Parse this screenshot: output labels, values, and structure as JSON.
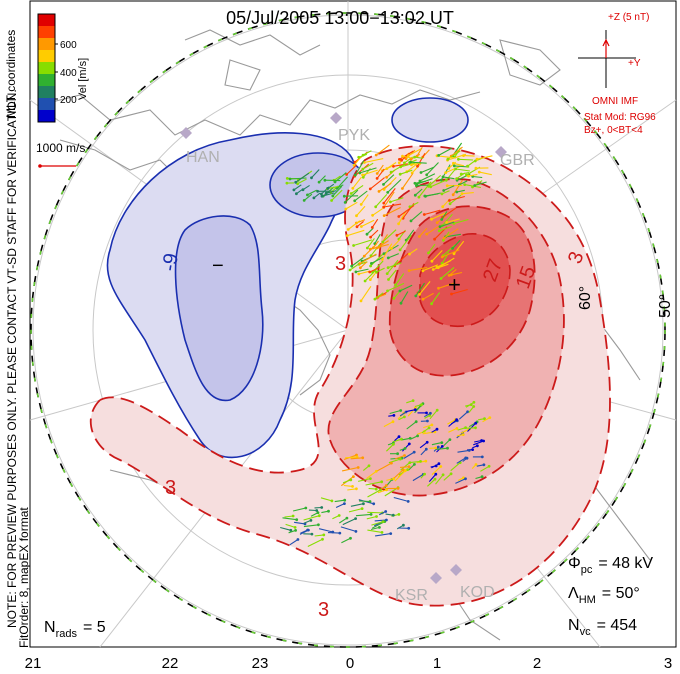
{
  "title": "05/Jul/2005 13:00−13:02 UT",
  "side_note": "NOTE: FOR PREVIEW PURPOSES ONLY. PLEASE CONTACT VT-SD STAFF FOR VERIFICATION.",
  "side_note2": "FitOrder: 8, mapEX format",
  "coord_label": "MLT coordinates",
  "colorbar": {
    "unit": "Vel [m/s]",
    "ticks": [
      "600",
      "400",
      "200"
    ],
    "colors": [
      "#e00000",
      "#ff4000",
      "#ff9900",
      "#ffcc00",
      "#88dd00",
      "#30b030",
      "#208060",
      "#2050b0",
      "#0000cc"
    ]
  },
  "scale_vector": "1000 m/s",
  "imf": {
    "z_label": "+Z (5 nT)",
    "y_label": "+Y",
    "source": "OMNI IMF",
    "model": "Stat Mod: RG96",
    "condition": "Bz+, 0<BT<4",
    "color": "#dd0000"
  },
  "stations": [
    "HAN",
    "PYK",
    "GBR",
    "KSR",
    "KOD"
  ],
  "contour_labels": {
    "neg": "-9",
    "pos": [
      "3",
      "15",
      "27",
      "3",
      "3",
      "3"
    ]
  },
  "lat_labels": [
    "60°",
    "50°"
  ],
  "markers": {
    "min": "−",
    "max": "+"
  },
  "stats": {
    "phi_sym": "Φ",
    "phi_sub": "pc",
    "phi_val": "= 48 kV",
    "lam_sym": "Λ",
    "lam_sub": "HM",
    "lam_val": "= 50°",
    "nvc_sym": "N",
    "nvc_sub": "vc",
    "nvc_val": "= 454",
    "nrads_sym": "N",
    "nrads_sub": "rads",
    "nrads_val": "= 5"
  },
  "mlt_ticks": [
    "21",
    "22",
    "23",
    "0",
    "1",
    "2",
    "3"
  ],
  "colors": {
    "negative_fill": "#dcdcf2",
    "negative_inner": "#c4c4ea",
    "negative_line": "#1a2fb0",
    "positive_fill": "#f6dede",
    "positive_mid": "#f0b2b2",
    "positive_core": "#e77474",
    "positive_peak": "#e25050",
    "positive_line": "#cc1a1a",
    "land": "#9a9a9a",
    "grid": "#c0c0c0"
  }
}
